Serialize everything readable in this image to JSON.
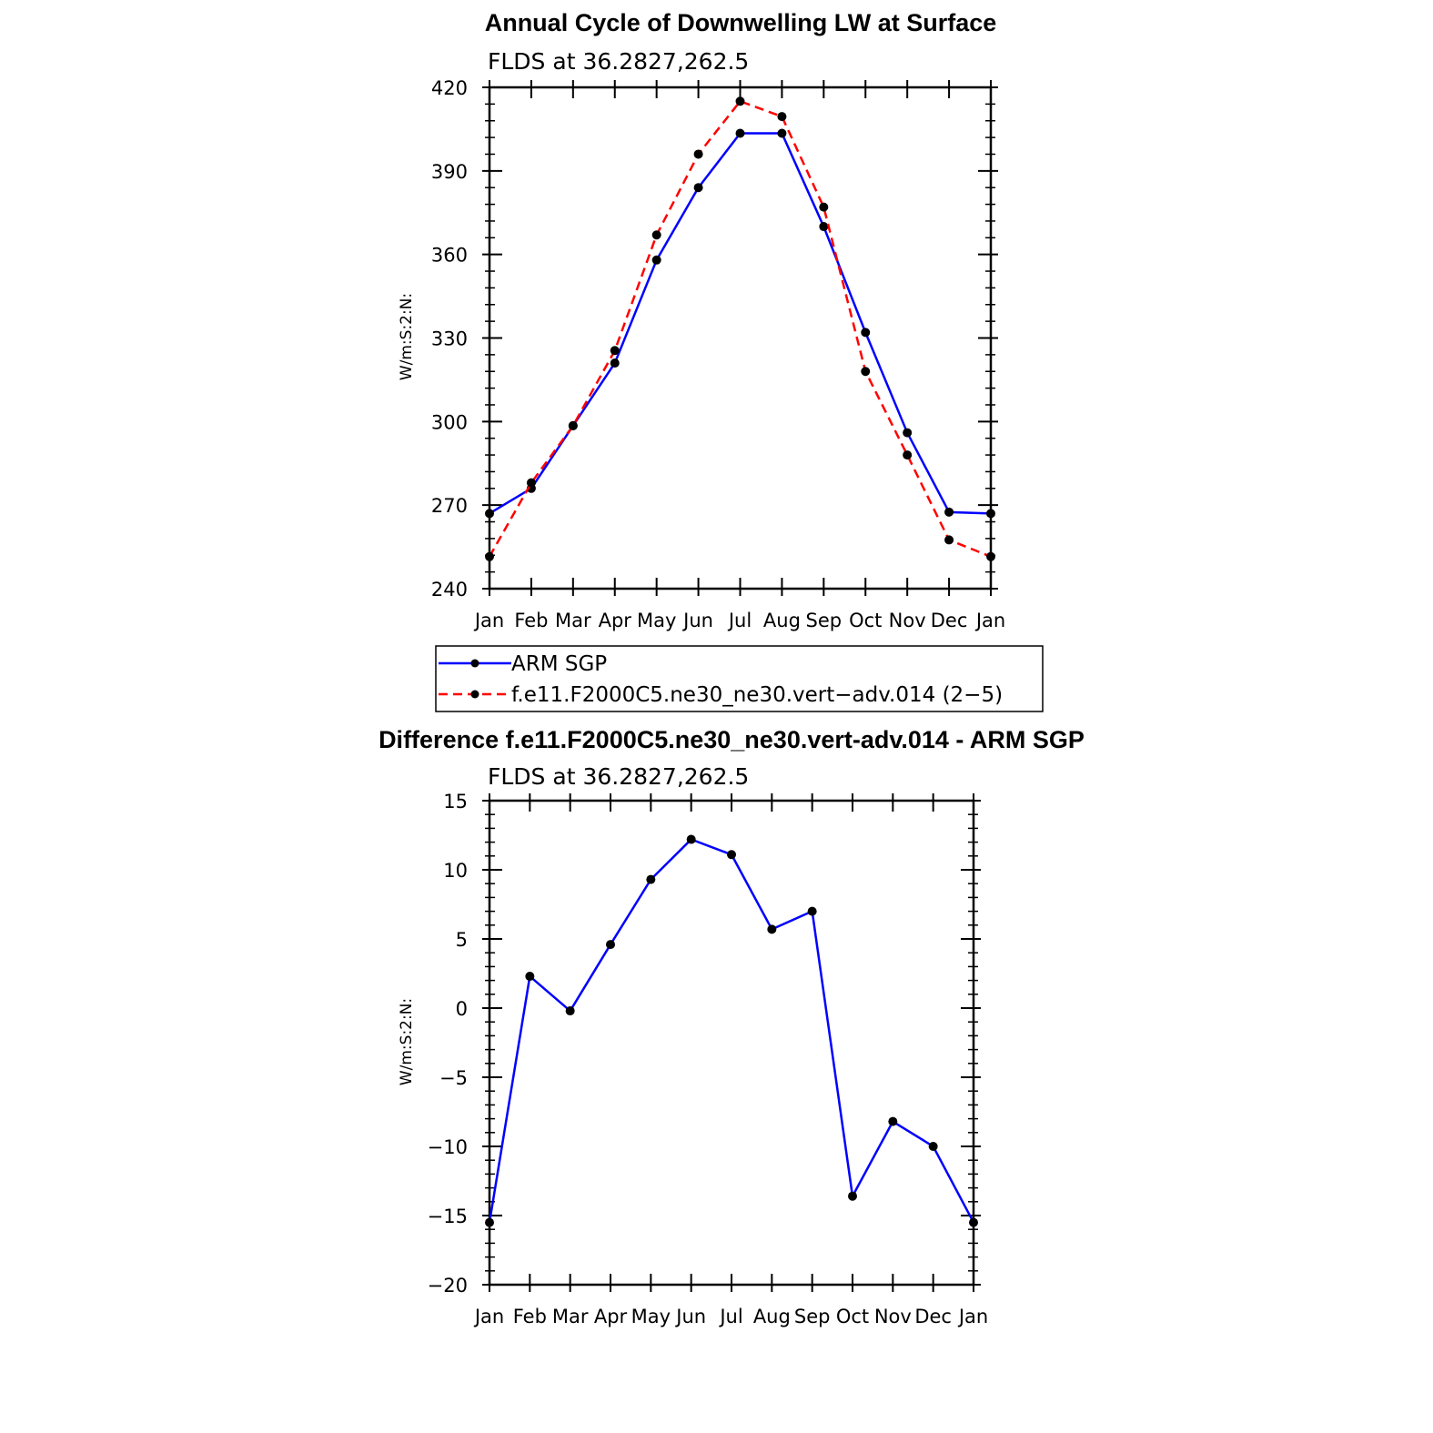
{
  "chart_data": [
    {
      "type": "line",
      "title": "Annual Cycle of Downwelling LW at Surface",
      "subtitle": "FLDS at 36.2827,262.5",
      "ylabel": "W/m:S:2:N:",
      "xlabel": "",
      "categories": [
        "Jan",
        "Feb",
        "Mar",
        "Apr",
        "May",
        "Jun",
        "Jul",
        "Aug",
        "Sep",
        "Oct",
        "Nov",
        "Dec",
        "Jan"
      ],
      "ylim": [
        240,
        420
      ],
      "yticks": [
        240,
        270,
        300,
        330,
        360,
        390,
        420
      ],
      "series": [
        {
          "name": "ARM SGP",
          "color": "#0000ff",
          "dash": "solid",
          "values": [
            267,
            276,
            298.5,
            321,
            358,
            384,
            403.5,
            403.5,
            370,
            332,
            296,
            267.5,
            267
          ]
        },
        {
          "name": "f.e11.F2000C5.ne30_ne30.vert−adv.014 (2−5)",
          "color": "#ff0000",
          "dash": "dashed",
          "values": [
            251.5,
            278,
            298.5,
            325.5,
            367,
            396,
            415,
            409.5,
            377,
            318,
            288,
            257.5,
            251.5
          ]
        }
      ],
      "legend": "below"
    },
    {
      "type": "line",
      "title": "Difference f.e11.F2000C5.ne30_ne30.vert-adv.014 - ARM SGP",
      "subtitle": "FLDS at 36.2827,262.5",
      "ylabel": "W/m:S:2:N:",
      "xlabel": "",
      "categories": [
        "Jan",
        "Feb",
        "Mar",
        "Apr",
        "May",
        "Jun",
        "Jul",
        "Aug",
        "Sep",
        "Oct",
        "Nov",
        "Dec",
        "Jan"
      ],
      "ylim": [
        -20,
        15
      ],
      "yticks": [
        -20,
        -15,
        -10,
        -5,
        0,
        5,
        10,
        15
      ],
      "ytick_labels": [
        "−20",
        "−15",
        "−10",
        "−5",
        "0",
        "5",
        "10",
        "15"
      ],
      "series": [
        {
          "color": "#0000ff",
          "dash": "solid",
          "values": [
            -15.5,
            2.3,
            -0.2,
            4.6,
            9.3,
            12.2,
            11.1,
            5.7,
            7.0,
            -13.6,
            -8.2,
            -10.0,
            -15.5
          ]
        }
      ]
    }
  ]
}
